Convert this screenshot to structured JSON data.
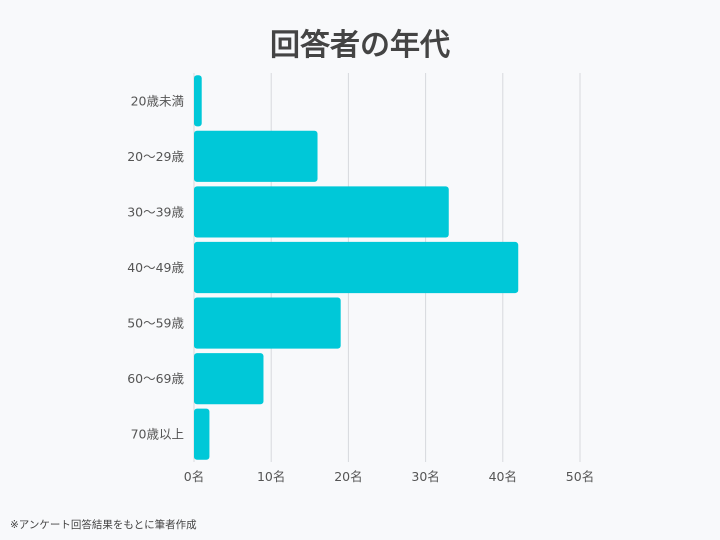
{
  "chart_data": {
    "type": "bar",
    "orientation": "horizontal",
    "title": "回答者の年代",
    "categories": [
      "20歳未満",
      "20～29歳",
      "30～39歳",
      "40～49歳",
      "50～59歳",
      "60～69歳",
      "70歳以上"
    ],
    "values": [
      1,
      16,
      33,
      42,
      19,
      9,
      2
    ],
    "xlim": [
      0,
      50
    ],
    "x_ticks": [
      "0名",
      "10名",
      "20名",
      "30名",
      "40名",
      "50名"
    ],
    "grid": "vertical",
    "bar_color": "#00c8d8",
    "grid_color": "#d7d9dd"
  },
  "footnote": "※アンケート回答結果をもとに筆者作成"
}
